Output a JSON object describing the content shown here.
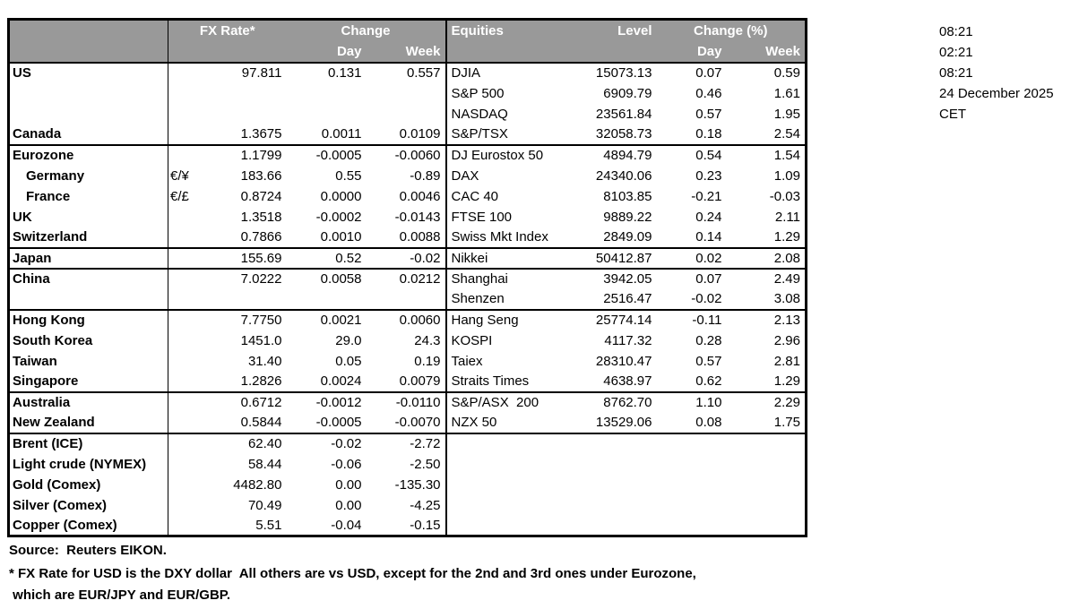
{
  "colors": {
    "header_bg": "#999999",
    "header_text": "#ffffff",
    "border": "#000000"
  },
  "header": {
    "fx_rate": "FX Rate*",
    "change": "Change",
    "day": "Day",
    "week": "Week",
    "equities": "Equities",
    "level": "Level",
    "change_pct": "Change (%)"
  },
  "rows": [
    {
      "country": "US",
      "indent": false,
      "sym": "",
      "fx": "97.811",
      "fx_day": "0.131",
      "fx_week": "0.557",
      "eq": "DJIA",
      "level": "15073.13",
      "eq_day": "0.07",
      "eq_week": "0.59",
      "sep": false
    },
    {
      "country": "",
      "indent": false,
      "sym": "",
      "fx": "",
      "fx_day": "",
      "fx_week": "",
      "eq": "S&P 500",
      "level": "6909.79",
      "eq_day": "0.46",
      "eq_week": "1.61",
      "sep": false
    },
    {
      "country": "",
      "indent": false,
      "sym": "",
      "fx": "",
      "fx_day": "",
      "fx_week": "",
      "eq": "NASDAQ",
      "level": "23561.84",
      "eq_day": "0.57",
      "eq_week": "1.95",
      "sep": false
    },
    {
      "country": "Canada",
      "indent": false,
      "sym": "",
      "fx": "1.3675",
      "fx_day": "0.0011",
      "fx_week": "0.0109",
      "eq": "S&P/TSX",
      "level": "32058.73",
      "eq_day": "0.18",
      "eq_week": "2.54",
      "sep": false
    },
    {
      "country": "Eurozone",
      "indent": false,
      "sym": "",
      "fx": "1.1799",
      "fx_day": "-0.0005",
      "fx_week": "-0.0060",
      "eq": "DJ Eurostox 50",
      "level": "4894.79",
      "eq_day": "0.54",
      "eq_week": "1.54",
      "sep": true
    },
    {
      "country": "Germany",
      "indent": true,
      "sym": "€/¥",
      "fx": "183.66",
      "fx_day": "0.55",
      "fx_week": "-0.89",
      "eq": "DAX",
      "level": "24340.06",
      "eq_day": "0.23",
      "eq_week": "1.09",
      "sep": false
    },
    {
      "country": "France",
      "indent": true,
      "sym": "€/£",
      "fx": "0.8724",
      "fx_day": "0.0000",
      "fx_week": "0.0046",
      "eq": "CAC 40",
      "level": "8103.85",
      "eq_day": "-0.21",
      "eq_week": "-0.03",
      "sep": false
    },
    {
      "country": "UK",
      "indent": false,
      "sym": "",
      "fx": "1.3518",
      "fx_day": "-0.0002",
      "fx_week": "-0.0143",
      "eq": "FTSE 100",
      "level": "9889.22",
      "eq_day": "0.24",
      "eq_week": "2.11",
      "sep": false
    },
    {
      "country": "Switzerland",
      "indent": false,
      "sym": "",
      "fx": "0.7866",
      "fx_day": "0.0010",
      "fx_week": "0.0088",
      "eq": "Swiss Mkt Index",
      "level": "2849.09",
      "eq_day": "0.14",
      "eq_week": "1.29",
      "sep": false
    },
    {
      "country": "Japan",
      "indent": false,
      "sym": "",
      "fx": "155.69",
      "fx_day": "0.52",
      "fx_week": "-0.02",
      "eq": "Nikkei",
      "level": "50412.87",
      "eq_day": "0.02",
      "eq_week": "2.08",
      "sep": true
    },
    {
      "country": "China",
      "indent": false,
      "sym": "",
      "fx": "7.0222",
      "fx_day": "0.0058",
      "fx_week": "0.0212",
      "eq": "Shanghai",
      "level": "3942.05",
      "eq_day": "0.07",
      "eq_week": "2.49",
      "sep": true
    },
    {
      "country": "",
      "indent": false,
      "sym": "",
      "fx": "",
      "fx_day": "",
      "fx_week": "",
      "eq": "Shenzen",
      "level": "2516.47",
      "eq_day": "-0.02",
      "eq_week": "3.08",
      "sep": false
    },
    {
      "country": "Hong Kong",
      "indent": false,
      "sym": "",
      "fx": "7.7750",
      "fx_day": "0.0021",
      "fx_week": "0.0060",
      "eq": "Hang Seng",
      "level": "25774.14",
      "eq_day": "-0.11",
      "eq_week": "2.13",
      "sep": true
    },
    {
      "country": "South Korea",
      "indent": false,
      "sym": "",
      "fx": "1451.0",
      "fx_day": "29.0",
      "fx_week": "24.3",
      "eq": "KOSPI",
      "level": "4117.32",
      "eq_day": "0.28",
      "eq_week": "2.96",
      "sep": false
    },
    {
      "country": "Taiwan",
      "indent": false,
      "sym": "",
      "fx": "31.40",
      "fx_day": "0.05",
      "fx_week": "0.19",
      "eq": "Taiex",
      "level": "28310.47",
      "eq_day": "0.57",
      "eq_week": "2.81",
      "sep": false
    },
    {
      "country": "Singapore",
      "indent": false,
      "sym": "",
      "fx": "1.2826",
      "fx_day": "0.0024",
      "fx_week": "0.0079",
      "eq": "Straits Times",
      "level": "4638.97",
      "eq_day": "0.62",
      "eq_week": "1.29",
      "sep": false
    },
    {
      "country": "Australia",
      "indent": false,
      "sym": "",
      "fx": "0.6712",
      "fx_day": "-0.0012",
      "fx_week": "-0.0110",
      "eq": "S&P/ASX  200",
      "level": "8762.70",
      "eq_day": "1.10",
      "eq_week": "2.29",
      "sep": true
    },
    {
      "country": "New Zealand",
      "indent": false,
      "sym": "",
      "fx": "0.5844",
      "fx_day": "-0.0005",
      "fx_week": "-0.0070",
      "eq": "NZX 50",
      "level": "13529.06",
      "eq_day": "0.08",
      "eq_week": "1.75",
      "sep": false
    },
    {
      "country": "Brent (ICE)",
      "indent": false,
      "sym": "",
      "fx": "62.40",
      "fx_day": "-0.02",
      "fx_week": "-2.72",
      "eq": "",
      "level": "",
      "eq_day": "",
      "eq_week": "",
      "sep": true
    },
    {
      "country": "Light crude (NYMEX)",
      "indent": false,
      "sym": "",
      "fx": "58.44",
      "fx_day": "-0.06",
      "fx_week": "-2.50",
      "eq": "",
      "level": "",
      "eq_day": "",
      "eq_week": "",
      "sep": false
    },
    {
      "country": "Gold (Comex)",
      "indent": false,
      "sym": "",
      "fx": "4482.80",
      "fx_day": "0.00",
      "fx_week": "-135.30",
      "eq": "",
      "level": "",
      "eq_day": "",
      "eq_week": "",
      "sep": false
    },
    {
      "country": "Silver (Comex)",
      "indent": false,
      "sym": "",
      "fx": "70.49",
      "fx_day": "0.00",
      "fx_week": "-4.25",
      "eq": "",
      "level": "",
      "eq_day": "",
      "eq_week": "",
      "sep": false
    },
    {
      "country": "Copper (Comex)",
      "indent": false,
      "sym": "",
      "fx": "5.51",
      "fx_day": "-0.04",
      "fx_week": "-0.15",
      "eq": "",
      "level": "",
      "eq_day": "",
      "eq_week": "",
      "sep": false
    }
  ],
  "timestamps": [
    "08:21",
    "02:21",
    "08:21",
    "24 December 2025",
    "CET"
  ],
  "footer": {
    "source": "Source:  Reuters EIKON.",
    "note_line1": "* FX Rate for USD is the DXY dollar  All others are vs USD, except for the 2nd and 3rd ones under Eurozone,",
    "note_line2": " which are EUR/JPY and EUR/GBP."
  }
}
